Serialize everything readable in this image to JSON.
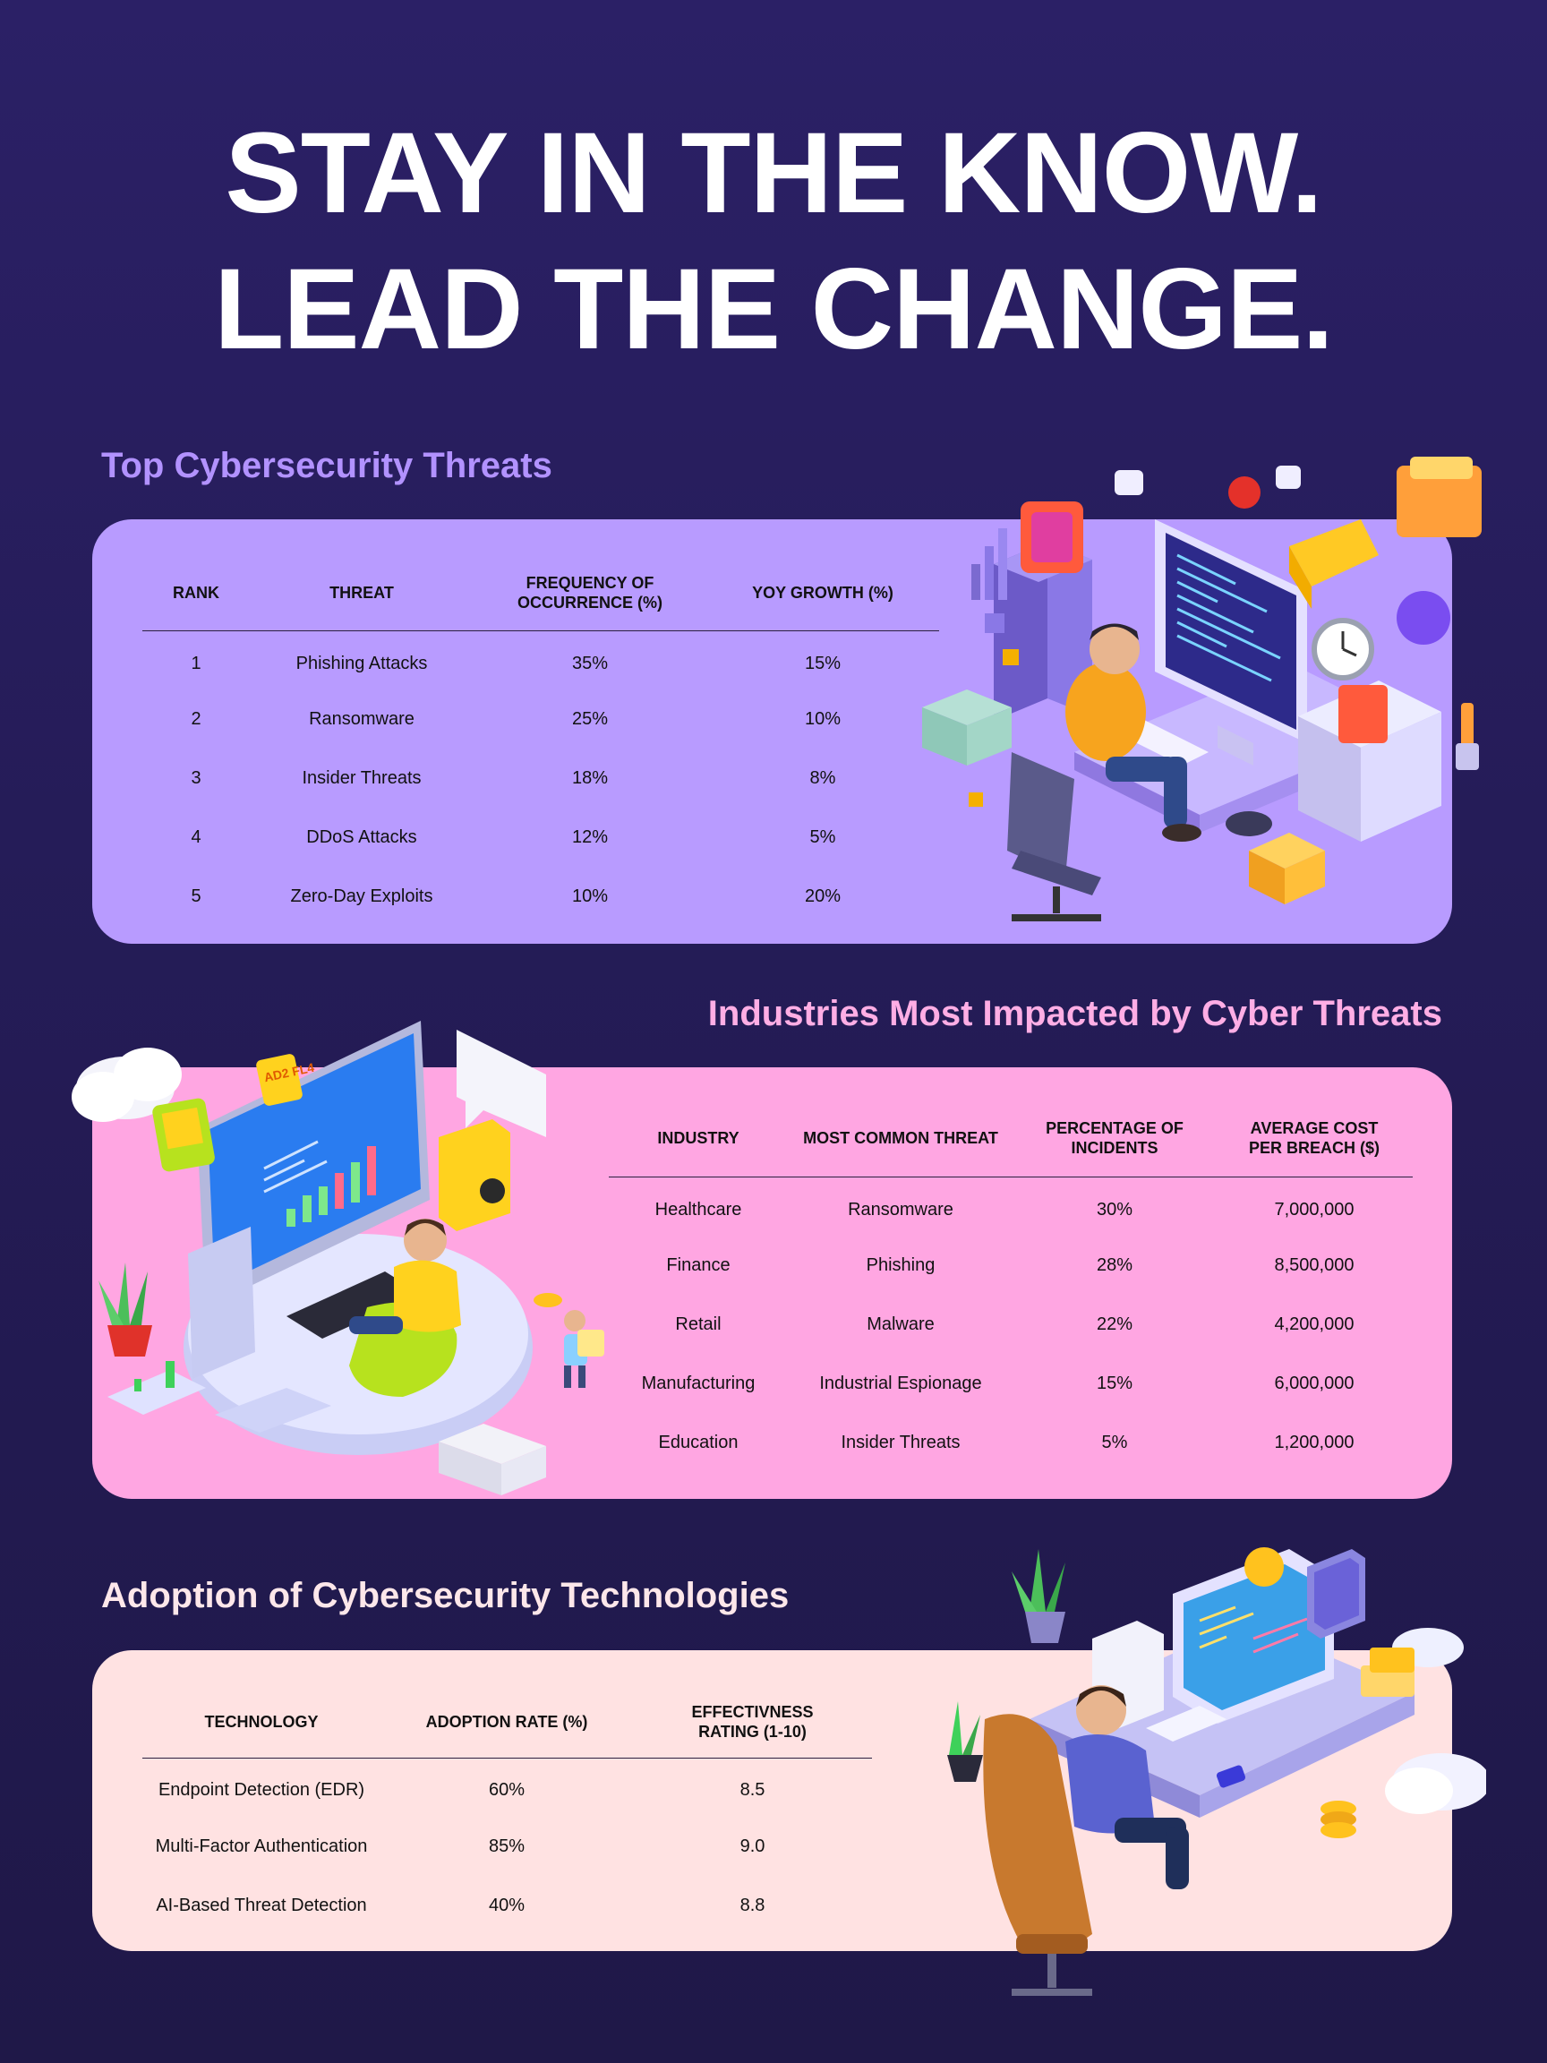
{
  "headline": {
    "line1": "STAY IN THE KNOW.",
    "line2": "LEAD THE CHANGE."
  },
  "colors": {
    "background": "#2b2066",
    "panel1": "#b89bff",
    "panel2": "#ffa6e2",
    "panel3": "#ffe2e2",
    "title1": "#b292ff",
    "title2": "#ffaee5",
    "title3": "#fde7ea"
  },
  "threats": {
    "title": "Top Cybersecurity Threats",
    "headers": [
      "RANK",
      "THREAT",
      "FREQUENCY OF OCCURRENCE (%)",
      "YOY GROWTH (%)"
    ],
    "rows": [
      [
        "1",
        "Phishing Attacks",
        "35%",
        "15%"
      ],
      [
        "2",
        "Ransomware",
        "25%",
        "10%"
      ],
      [
        "3",
        "Insider Threats",
        "18%",
        "8%"
      ],
      [
        "4",
        "DDoS Attacks",
        "12%",
        "5%"
      ],
      [
        "5",
        "Zero-Day Exploits",
        "10%",
        "20%"
      ]
    ]
  },
  "industries": {
    "title": "Industries Most Impacted by Cyber Threats",
    "headers": [
      "INDUSTRY",
      "MOST COMMON THREAT",
      "PERCENTAGE OF INCIDENTS",
      "AVERAGE COST PER BREACH ($)"
    ],
    "rows": [
      [
        "Healthcare",
        "Ransomware",
        "30%",
        "7,000,000"
      ],
      [
        "Finance",
        "Phishing",
        "28%",
        "8,500,000"
      ],
      [
        "Retail",
        "Malware",
        "22%",
        "4,200,000"
      ],
      [
        "Manufacturing",
        "Industrial Espionage",
        "15%",
        "6,000,000"
      ],
      [
        "Education",
        "Insider Threats",
        "5%",
        "1,200,000"
      ]
    ]
  },
  "technologies": {
    "title": "Adoption of Cybersecurity Technologies",
    "headers": [
      "TECHNOLOGY",
      "ADOPTION RATE (%)",
      "EFFECTIVNESS RATING (1-10)"
    ],
    "rows": [
      [
        "Endpoint Detection (EDR)",
        "60%",
        "8.5"
      ],
      [
        "Multi-Factor Authentication",
        "85%",
        "9.0"
      ],
      [
        "AI-Based Threat Detection",
        "40%",
        "8.8"
      ]
    ]
  },
  "illustration_sign": "AD2 FL4"
}
